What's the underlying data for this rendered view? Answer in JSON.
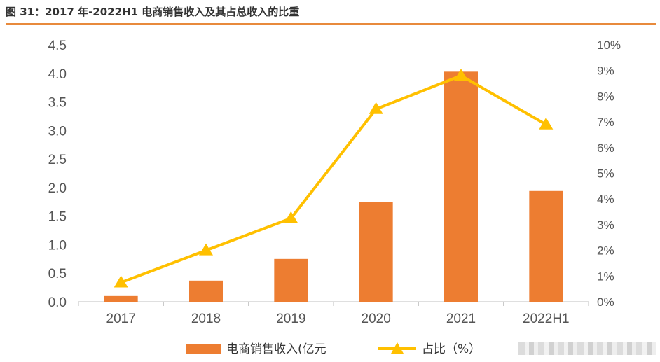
{
  "title": "图 31：2017 年-2022H1 电商销售收入及其占总收入的比重",
  "colors": {
    "bar": "#ed7d31",
    "line": "#ffc000",
    "rule": "#e88a3c",
    "axis": "#bfbfbf"
  },
  "chart_data": {
    "type": "bar",
    "categories": [
      "2017",
      "2018",
      "2019",
      "2020",
      "2021",
      "2022H1"
    ],
    "series": [
      {
        "name": "电商销售收入(亿元",
        "type": "bar",
        "axis": "left",
        "values": [
          0.1,
          0.37,
          0.75,
          1.75,
          4.03,
          1.94
        ]
      },
      {
        "name": "占比（%）",
        "type": "line",
        "axis": "right",
        "values": [
          0.75,
          2.0,
          3.25,
          7.5,
          8.8,
          6.9
        ]
      }
    ],
    "y_left": {
      "min": 0,
      "max": 4.5,
      "ticks": [
        "0.0",
        "0.5",
        "1.0",
        "1.5",
        "2.0",
        "2.5",
        "3.0",
        "3.5",
        "4.0",
        "4.5"
      ]
    },
    "y_right": {
      "min": 0,
      "max": 10,
      "ticks": [
        "0%",
        "1%",
        "2%",
        "3%",
        "4%",
        "5%",
        "6%",
        "7%",
        "8%",
        "9%",
        "10%"
      ]
    },
    "grid": false,
    "legend": "bottom"
  }
}
